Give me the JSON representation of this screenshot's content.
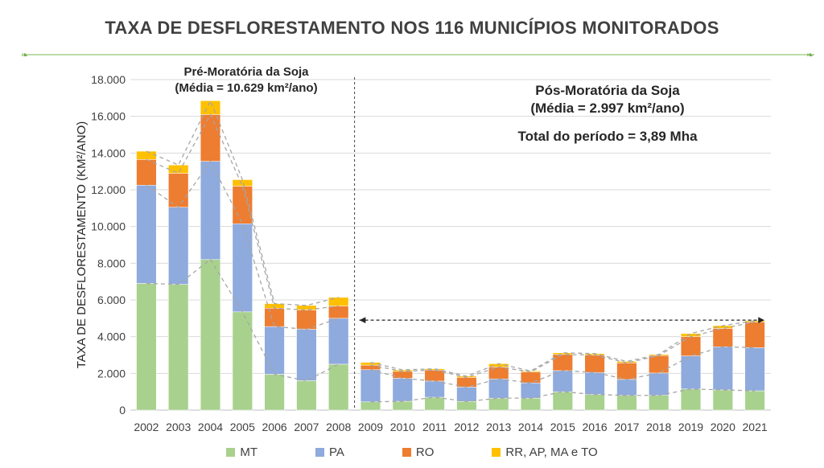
{
  "page": {
    "title": "TAXA DE DESFLORESTAMENTO NOS 116 MUNICÍPIOS MONITORADOS",
    "pre_moratoria": {
      "line1": "Pré-Moratória da Soja",
      "line2": "(Média = 10.629 km²/ano)"
    },
    "pos_moratoria": {
      "line1": "Pós-Moratória da Soja",
      "line2": "(Média = 2.997 km²/ano)",
      "total": "Total do período = 3,89 Mha"
    }
  },
  "chart_data": {
    "type": "bar",
    "stacked": true,
    "title": "TAXA DE DESFLORESTAMENTO NOS 116 MUNICÍPIOS MONITORADOS",
    "xlabel": "",
    "ylabel": "TAXA DE DESFLORESTAMENTO (KM²/ANO)",
    "ylim": [
      0,
      18000
    ],
    "y_ticks": [
      "0",
      "2.000",
      "4.000",
      "6.000",
      "8.000",
      "10.000",
      "12.000",
      "14.000",
      "16.000",
      "18.000"
    ],
    "grid": true,
    "legend_position": "bottom",
    "categories": [
      "2002",
      "2003",
      "2004",
      "2005",
      "2006",
      "2007",
      "2008",
      "2009",
      "2010",
      "2011",
      "2012",
      "2013",
      "2014",
      "2015",
      "2016",
      "2017",
      "2018",
      "2019",
      "2020",
      "2021"
    ],
    "series": [
      {
        "name": "MT",
        "color": "#a9d18e",
        "values": [
          6900,
          6850,
          8200,
          5350,
          1950,
          1600,
          2500,
          450,
          480,
          700,
          470,
          650,
          650,
          1000,
          850,
          800,
          800,
          1150,
          1100,
          1050
        ]
      },
      {
        "name": "PA",
        "color": "#8faadc",
        "values": [
          5350,
          4200,
          5350,
          4800,
          2600,
          2800,
          2500,
          1750,
          1250,
          880,
          780,
          1050,
          830,
          1150,
          1200,
          870,
          1220,
          1800,
          2350,
          2350
        ]
      },
      {
        "name": "RO",
        "color": "#ed7d31",
        "values": [
          1400,
          1850,
          2550,
          2050,
          1000,
          1050,
          670,
          250,
          380,
          600,
          530,
          650,
          600,
          880,
          950,
          900,
          950,
          1050,
          1000,
          1400
        ]
      },
      {
        "name": "RR, AP, MA e TO",
        "color": "#ffc000",
        "values": [
          450,
          450,
          750,
          350,
          250,
          250,
          470,
          150,
          80,
          70,
          70,
          180,
          50,
          90,
          80,
          80,
          60,
          170,
          150,
          70
        ]
      }
    ],
    "annotations": [
      "Pré-Moratória da Soja",
      "(Média = 10.629 km²/ano)",
      "Pós-Moratória da Soja",
      "(Média = 2.997 km²/ano)",
      "Total do período = 3,89 Mha"
    ],
    "divider_between": [
      "2008",
      "2009"
    ],
    "arrow_span": [
      "2009",
      "2021"
    ]
  }
}
